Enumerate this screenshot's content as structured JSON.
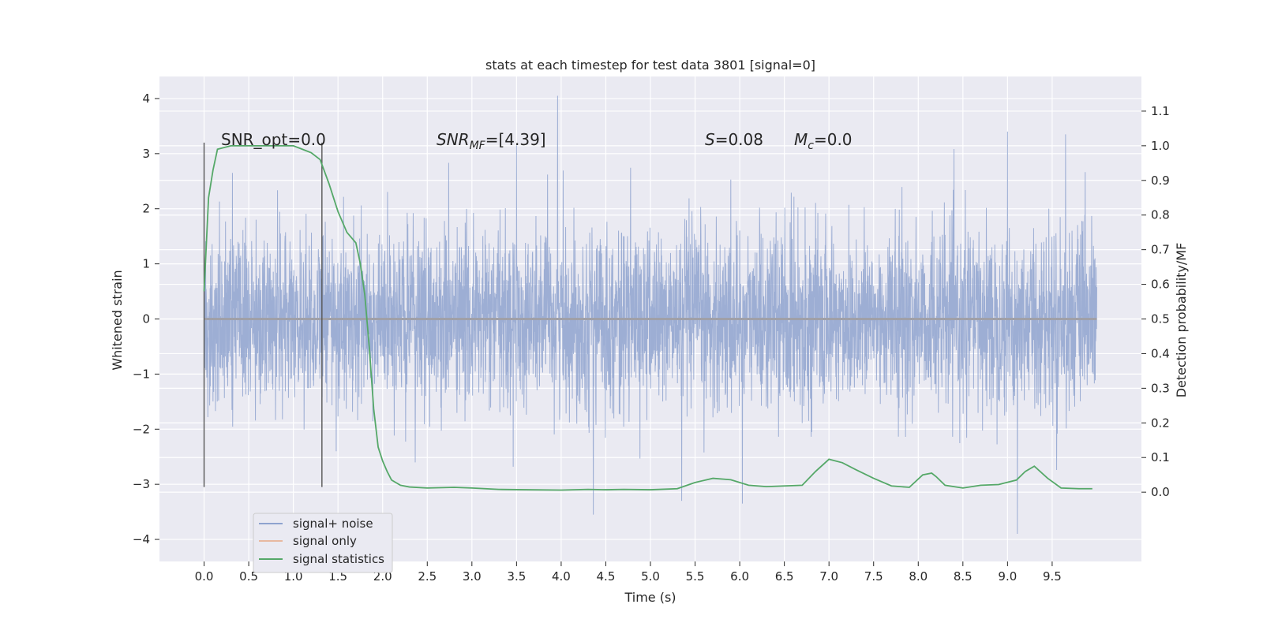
{
  "chart_data": {
    "type": "line",
    "title": "stats at each timestep for test data 3801 [signal=0]",
    "xlabel": "Time (s)",
    "ylabel_left": "Whitened strain",
    "ylabel_right": "Detection probability/MF",
    "xlim": [
      -0.5,
      10.5
    ],
    "ylim_left": [
      -4.4,
      4.4
    ],
    "ylim_right": [
      -0.2,
      1.2
    ],
    "x_ticks": [
      "0.0",
      "0.5",
      "1.0",
      "1.5",
      "2.0",
      "2.5",
      "3.0",
      "3.5",
      "4.0",
      "4.5",
      "5.0",
      "5.5",
      "6.0",
      "6.5",
      "7.0",
      "7.5",
      "8.0",
      "8.5",
      "9.0",
      "9.5"
    ],
    "y_ticks_left": [
      "4",
      "3",
      "2",
      "1",
      "0",
      "−1",
      "−2",
      "−3",
      "−4"
    ],
    "y_ticks_right": [
      "1.1",
      "1.0",
      "0.9",
      "0.8",
      "0.7",
      "0.6",
      "0.5",
      "0.4",
      "0.3",
      "0.2",
      "0.1",
      "0.0"
    ],
    "grid": true,
    "legend_position": "lower-left",
    "annotations": {
      "snr_opt": "SNR_opt=0.0",
      "snr_mf_label": "SNR",
      "snr_mf_sub": "MF",
      "snr_mf_value": "=[4.39]",
      "s_label": "S",
      "s_value": "=0.08",
      "mc_label": "M",
      "mc_sub": "c",
      "mc_value": "=0.0"
    },
    "vertical_markers": [
      0.0,
      1.32
    ],
    "series": [
      {
        "name": "signal+ noise",
        "axis": "left",
        "color": "#8fa3cf",
        "description_kind": "noise",
        "x_range": [
          0.0,
          10.0
        ],
        "typical_amplitude": 1.3,
        "peaks": [
          {
            "x": 3.96,
            "y": 4.05
          },
          {
            "x": 9.0,
            "y": 3.4
          },
          {
            "x": 9.65,
            "y": 3.35
          },
          {
            "x": 3.5,
            "y": 3.15
          },
          {
            "x": 4.36,
            "y": -3.55
          },
          {
            "x": 9.11,
            "y": -3.9
          },
          {
            "x": 6.03,
            "y": -3.35
          },
          {
            "x": 5.35,
            "y": -3.3
          }
        ]
      },
      {
        "name": "signal only",
        "axis": "left",
        "color": "#dd8452",
        "x": [
          0.0,
          10.0
        ],
        "y": [
          0.0,
          0.0
        ]
      },
      {
        "name": "signal statistics",
        "axis": "right",
        "color": "#55a868",
        "x": [
          0.0,
          0.05,
          0.1,
          0.15,
          0.3,
          0.5,
          0.8,
          1.0,
          1.1,
          1.2,
          1.3,
          1.4,
          1.5,
          1.6,
          1.7,
          1.75,
          1.8,
          1.85,
          1.9,
          1.95,
          2.0,
          2.05,
          2.1,
          2.2,
          2.3,
          2.5,
          2.8,
          3.0,
          3.3,
          3.6,
          4.0,
          4.3,
          4.5,
          4.7,
          5.0,
          5.3,
          5.5,
          5.7,
          5.9,
          6.1,
          6.3,
          6.5,
          6.7,
          6.85,
          7.0,
          7.15,
          7.3,
          7.5,
          7.7,
          7.9,
          8.05,
          8.15,
          8.2,
          8.3,
          8.5,
          8.7,
          8.9,
          9.1,
          9.2,
          9.3,
          9.45,
          9.6,
          9.8,
          9.95
        ],
        "y": [
          0.58,
          0.85,
          0.93,
          0.99,
          1.0,
          1.0,
          1.0,
          1.0,
          0.99,
          0.98,
          0.96,
          0.89,
          0.81,
          0.75,
          0.72,
          0.66,
          0.57,
          0.42,
          0.24,
          0.13,
          0.09,
          0.06,
          0.035,
          0.02,
          0.015,
          0.012,
          0.014,
          0.012,
          0.008,
          0.007,
          0.006,
          0.008,
          0.007,
          0.008,
          0.007,
          0.01,
          0.028,
          0.04,
          0.036,
          0.02,
          0.016,
          0.018,
          0.02,
          0.06,
          0.095,
          0.085,
          0.065,
          0.04,
          0.018,
          0.014,
          0.05,
          0.055,
          0.045,
          0.02,
          0.012,
          0.02,
          0.022,
          0.035,
          0.06,
          0.075,
          0.04,
          0.012,
          0.01,
          0.01
        ]
      }
    ]
  }
}
